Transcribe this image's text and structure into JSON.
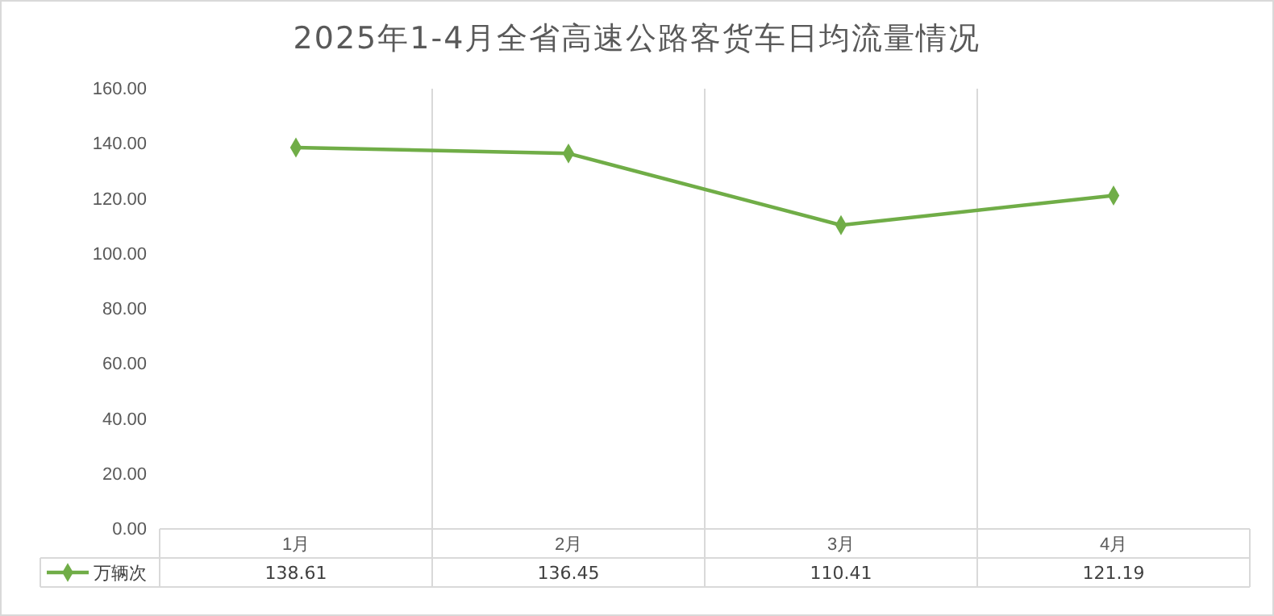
{
  "chart_data": {
    "type": "line",
    "title": "2025年1-4月全省高速公路客货车日均流量情况",
    "categories": [
      "1月",
      "2月",
      "3月",
      "4月"
    ],
    "series": [
      {
        "name": "万辆次",
        "color": "#70ad47",
        "values": [
          138.61,
          136.45,
          110.41,
          121.19
        ]
      }
    ],
    "ylim": [
      0,
      160
    ],
    "yticks": [
      {
        "value": 0,
        "label": "0.00"
      },
      {
        "value": 20,
        "label": "20.00"
      },
      {
        "value": 40,
        "label": "40.00"
      },
      {
        "value": 60,
        "label": "60.00"
      },
      {
        "value": 80,
        "label": "80.00"
      },
      {
        "value": 100,
        "label": "100.00"
      },
      {
        "value": 120,
        "label": "120.00"
      },
      {
        "value": 140,
        "label": "140.00"
      },
      {
        "value": 160,
        "label": "160.00"
      }
    ],
    "grid": "x",
    "legend": "bottom",
    "marker": "diamond",
    "line_style": "solid",
    "data_labels": true
  }
}
